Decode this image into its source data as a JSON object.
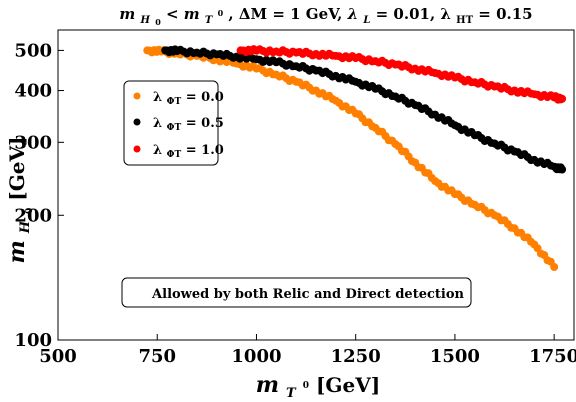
{
  "chart_data": {
    "type": "scatter",
    "title": "m_{H_0} < m_{T^0}, ΔM = 1 GeV, λ_L = 0.01,  λ_HT = 0.15",
    "title_parts": {
      "m": "m",
      "h_sub": "H",
      "h_subsub": "0",
      "lt": " < ",
      "m2": "m",
      "t_sub": "T",
      "t_sup": "0",
      "mid": ", ΔM = 1 GeV, ",
      "lambda": "λ",
      "l_sub": "L",
      "lval": " = 0.01,  λ",
      "ht_sub": "HT",
      "htval": " = 0.15"
    },
    "xlabel": "m_{T^0} [GeV]",
    "xlabel_parts": {
      "m": "m",
      "sub": "T",
      "subsup": "0",
      "unit": " [GeV]"
    },
    "ylabel": "m_{H_0} [GeV]",
    "ylabel_parts": {
      "m": "m",
      "sub": "H",
      "subsub": "0",
      "unit": " [GeV]"
    },
    "xlim": [
      500,
      1800
    ],
    "ylim": [
      100,
      560
    ],
    "yscale": "log",
    "x_ticks": [
      {
        "value": 500,
        "label": "500"
      },
      {
        "value": 750,
        "label": "750"
      },
      {
        "value": 1000,
        "label": "1000"
      },
      {
        "value": 1250,
        "label": "1250"
      },
      {
        "value": 1500,
        "label": "1500"
      },
      {
        "value": 1750,
        "label": "1750"
      }
    ],
    "y_ticks": [
      {
        "value": 100,
        "label": "100"
      },
      {
        "value": 200,
        "label": "200"
      },
      {
        "value": 300,
        "label": "300"
      },
      {
        "value": 400,
        "label": "400"
      },
      {
        "value": 500,
        "label": "500"
      }
    ],
    "grid": false,
    "legend_position": "upper-left",
    "annotation": "Allowed by both Relic and Direct detection",
    "series": [
      {
        "name": "λ_ΦT = 0.0",
        "legend_parts": {
          "lambda": "λ",
          "sub": "ΦT",
          "val": "= 0.0"
        },
        "color": "#ff8000",
        "points": [
          [
            725,
            500
          ],
          [
            760,
            497
          ],
          [
            800,
            492
          ],
          [
            850,
            485
          ],
          [
            900,
            476
          ],
          [
            950,
            465
          ],
          [
            1000,
            452
          ],
          [
            1050,
            437
          ],
          [
            1100,
            420
          ],
          [
            1150,
            400
          ],
          [
            1200,
            378
          ],
          [
            1250,
            352
          ],
          [
            1300,
            325
          ],
          [
            1350,
            297
          ],
          [
            1400,
            268
          ],
          [
            1450,
            242
          ],
          [
            1500,
            225
          ],
          [
            1550,
            212
          ],
          [
            1600,
            200
          ],
          [
            1650,
            186
          ],
          [
            1700,
            170
          ],
          [
            1750,
            150
          ]
        ]
      },
      {
        "name": "λ_ΦT = 0.5",
        "legend_parts": {
          "lambda": "λ",
          "sub": "ΦT",
          "val": "= 0.5"
        },
        "color": "#000000",
        "points": [
          [
            770,
            500
          ],
          [
            800,
            498
          ],
          [
            850,
            494
          ],
          [
            900,
            489
          ],
          [
            950,
            483
          ],
          [
            1000,
            476
          ],
          [
            1050,
            468
          ],
          [
            1100,
            458
          ],
          [
            1150,
            447
          ],
          [
            1200,
            434
          ],
          [
            1250,
            420
          ],
          [
            1300,
            404
          ],
          [
            1350,
            387
          ],
          [
            1400,
            369
          ],
          [
            1450,
            350
          ],
          [
            1500,
            330
          ],
          [
            1550,
            312
          ],
          [
            1600,
            298
          ],
          [
            1650,
            285
          ],
          [
            1700,
            272
          ],
          [
            1750,
            262
          ],
          [
            1770,
            258
          ]
        ]
      },
      {
        "name": "λ_ΦT = 1.0",
        "legend_parts": {
          "lambda": "λ",
          "sub": "ΦT",
          "val": "= 1.0"
        },
        "color": "#ff0000",
        "points": [
          [
            960,
            500
          ],
          [
            1000,
            499
          ],
          [
            1050,
            497
          ],
          [
            1100,
            494
          ],
          [
            1150,
            490
          ],
          [
            1200,
            485
          ],
          [
            1250,
            479
          ],
          [
            1300,
            471
          ],
          [
            1350,
            462
          ],
          [
            1400,
            452
          ],
          [
            1450,
            441
          ],
          [
            1500,
            430
          ],
          [
            1550,
            419
          ],
          [
            1600,
            409
          ],
          [
            1650,
            400
          ],
          [
            1700,
            392
          ],
          [
            1750,
            385
          ],
          [
            1770,
            382
          ]
        ]
      }
    ]
  }
}
